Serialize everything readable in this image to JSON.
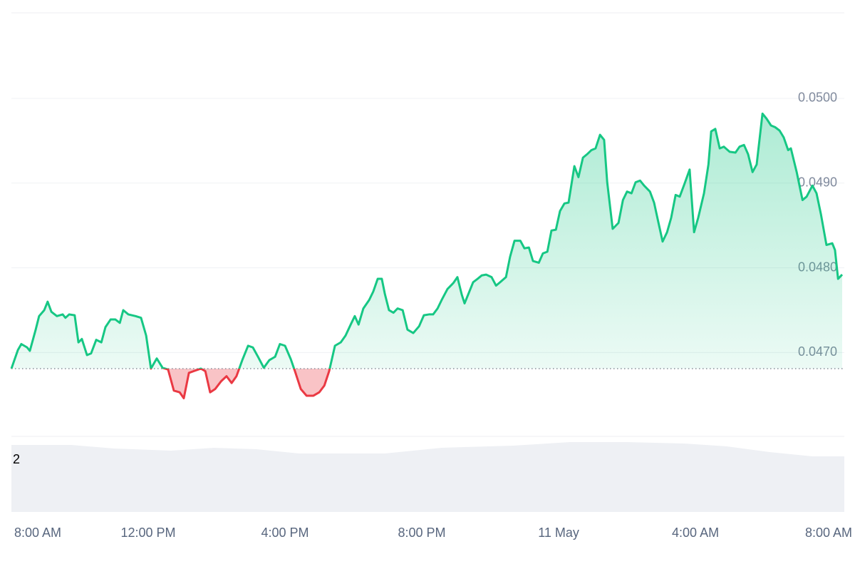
{
  "chart_data": {
    "type": "line",
    "annotation": "2",
    "color": "#16c784",
    "negative_color": "#ea3943",
    "grid": true,
    "xlim": [
      0,
      24.29
    ],
    "ylim": [
      0.04601,
      0.05101
    ],
    "xticks": [
      {
        "value": 0,
        "label": "8:00 AM"
      },
      {
        "value": 4,
        "label": "12:00 PM"
      },
      {
        "value": 8,
        "label": "4:00 PM"
      },
      {
        "value": 12,
        "label": "8:00 PM"
      },
      {
        "value": 16,
        "label": "11 May"
      },
      {
        "value": 20,
        "label": "4:00 AM"
      },
      {
        "value": 24,
        "label": "8:00 AM"
      }
    ],
    "yticks": [
      {
        "value": 0.047,
        "label": "0.0470"
      },
      {
        "value": 0.048,
        "label": "0.0480"
      },
      {
        "value": 0.049,
        "label": "0.0490"
      },
      {
        "value": 0.05,
        "label": "0.0500"
      }
    ],
    "x": [
      0,
      0.19,
      0.29,
      0.46,
      0.54,
      0.71,
      0.81,
      0.96,
      1.06,
      1.17,
      1.33,
      1.5,
      1.58,
      1.69,
      1.85,
      1.96,
      2.06,
      2.21,
      2.33,
      2.48,
      2.63,
      2.75,
      2.9,
      3.04,
      3.17,
      3.27,
      3.42,
      3.63,
      3.79,
      3.94,
      4.08,
      4.25,
      4.42,
      4.58,
      4.75,
      4.92,
      5.04,
      5.19,
      5.33,
      5.54,
      5.67,
      5.81,
      5.96,
      6.13,
      6.29,
      6.44,
      6.58,
      6.75,
      6.92,
      7.06,
      7.21,
      7.38,
      7.54,
      7.71,
      7.85,
      8,
      8.17,
      8.29,
      8.46,
      8.63,
      8.83,
      9,
      9.15,
      9.29,
      9.46,
      9.63,
      9.77,
      9.92,
      10.04,
      10.15,
      10.29,
      10.46,
      10.58,
      10.71,
      10.83,
      10.92,
      11.04,
      11.17,
      11.29,
      11.44,
      11.58,
      11.75,
      11.92,
      12.06,
      12.21,
      12.33,
      12.46,
      12.58,
      12.75,
      12.92,
      13.04,
      13.17,
      13.25,
      13.38,
      13.5,
      13.63,
      13.75,
      13.88,
      14.04,
      14.17,
      14.29,
      14.46,
      14.58,
      14.71,
      14.88,
      15,
      15.13,
      15.25,
      15.42,
      15.54,
      15.67,
      15.79,
      15.92,
      16.04,
      16.17,
      16.29,
      16.46,
      16.58,
      16.71,
      16.83,
      16.96,
      17.08,
      17.21,
      17.33,
      17.42,
      17.58,
      17.75,
      17.88,
      18,
      18.13,
      18.25,
      18.38,
      18.5,
      18.67,
      18.79,
      18.92,
      19.04,
      19.17,
      19.29,
      19.42,
      19.54,
      19.67,
      19.83,
      19.96,
      20.08,
      20.25,
      20.38,
      20.46,
      20.58,
      20.71,
      20.83,
      21,
      21.17,
      21.29,
      21.42,
      21.54,
      21.67,
      21.79,
      21.96,
      22.08,
      22.21,
      22.33,
      22.46,
      22.58,
      22.71,
      22.79,
      22.96,
      23.13,
      23.25,
      23.42,
      23.54,
      23.67,
      23.83,
      24,
      24.08,
      24.17,
      24.29
    ],
    "values": [
      0.04681,
      0.04703,
      0.0471,
      0.04706,
      0.04702,
      0.04727,
      0.04743,
      0.0475,
      0.0476,
      0.04748,
      0.04743,
      0.04745,
      0.04741,
      0.04745,
      0.04744,
      0.04712,
      0.04716,
      0.04697,
      0.04699,
      0.04715,
      0.04712,
      0.0473,
      0.04739,
      0.04739,
      0.04735,
      0.0475,
      0.04745,
      0.04743,
      0.04741,
      0.0472,
      0.04681,
      0.04693,
      0.04682,
      0.0468,
      0.04655,
      0.04653,
      0.04646,
      0.04676,
      0.04678,
      0.04681,
      0.04678,
      0.04653,
      0.04657,
      0.04666,
      0.04672,
      0.04664,
      0.04672,
      0.04691,
      0.04708,
      0.04706,
      0.04695,
      0.04682,
      0.04691,
      0.04695,
      0.0471,
      0.04708,
      0.04692,
      0.04678,
      0.04657,
      0.04649,
      0.04649,
      0.04653,
      0.04661,
      0.04678,
      0.04708,
      0.04712,
      0.0472,
      0.04733,
      0.04743,
      0.04733,
      0.04752,
      0.04762,
      0.04772,
      0.04787,
      0.04787,
      0.04769,
      0.0475,
      0.04747,
      0.04752,
      0.0475,
      0.04727,
      0.04723,
      0.04731,
      0.04744,
      0.04745,
      0.04745,
      0.04752,
      0.04762,
      0.04775,
      0.04782,
      0.04789,
      0.04768,
      0.04758,
      0.04771,
      0.04783,
      0.04787,
      0.04791,
      0.04792,
      0.04789,
      0.04779,
      0.04783,
      0.04789,
      0.04813,
      0.04832,
      0.04832,
      0.04823,
      0.04824,
      0.04808,
      0.04806,
      0.04817,
      0.04819,
      0.04844,
      0.04845,
      0.04867,
      0.04876,
      0.04877,
      0.0492,
      0.04907,
      0.0493,
      0.04934,
      0.04939,
      0.04941,
      0.04957,
      0.04951,
      0.04901,
      0.04846,
      0.04853,
      0.0488,
      0.0489,
      0.04888,
      0.04901,
      0.04903,
      0.04897,
      0.0489,
      0.04877,
      0.04853,
      0.04831,
      0.04842,
      0.04859,
      0.04886,
      0.04884,
      0.04898,
      0.04916,
      0.04842,
      0.04859,
      0.04888,
      0.04922,
      0.04961,
      0.04964,
      0.04941,
      0.04943,
      0.04937,
      0.04936,
      0.04943,
      0.04945,
      0.04934,
      0.04913,
      0.04922,
      0.04982,
      0.04976,
      0.04968,
      0.04966,
      0.04962,
      0.04954,
      0.04939,
      0.04941,
      0.04913,
      0.0488,
      0.04884,
      0.04897,
      0.04888,
      0.04863,
      0.04827,
      0.04829,
      0.04821,
      0.04787,
      0.04792
    ]
  }
}
